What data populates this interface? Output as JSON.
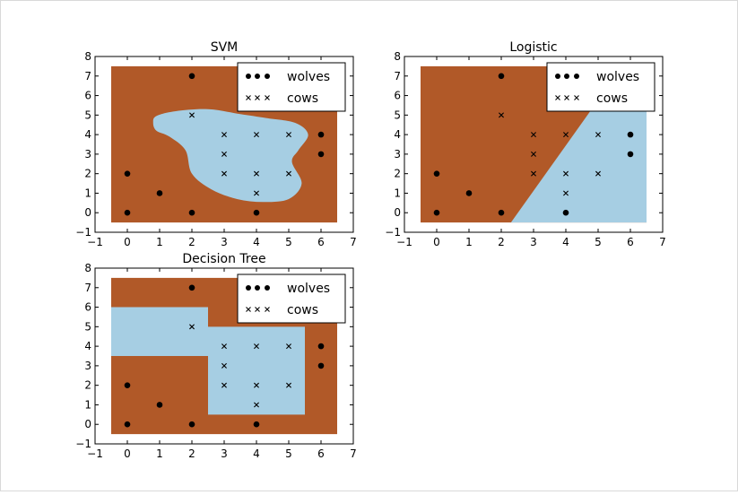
{
  "colors": {
    "background_region": "#b15928",
    "decision_region": "#a6cee3",
    "point": "#000000"
  },
  "chart_data": [
    {
      "type": "scatter",
      "title": "SVM",
      "xlim": [
        -1,
        7
      ],
      "ylim": [
        -1,
        8
      ],
      "xticks": [
        "−1",
        "0",
        "1",
        "2",
        "3",
        "4",
        "5",
        "6",
        "7"
      ],
      "yticks": [
        "−1",
        "0",
        "1",
        "2",
        "3",
        "4",
        "5",
        "6",
        "7",
        "8"
      ],
      "grid": false,
      "legend": {
        "placement": "top-right",
        "entries": [
          "wolves",
          "cows"
        ]
      },
      "region_extent": {
        "x": [
          -0.5,
          6.5
        ],
        "y": [
          -0.5,
          7.5
        ]
      },
      "decision_region": {
        "shape": "blob",
        "outline": [
          [
            0.8,
            4.6
          ],
          [
            0.9,
            4.95
          ],
          [
            1.5,
            5.2
          ],
          [
            2.5,
            5.3
          ],
          [
            3.5,
            5.05
          ],
          [
            4.3,
            4.85
          ],
          [
            5.2,
            4.6
          ],
          [
            5.6,
            4.0
          ],
          [
            5.3,
            3.2
          ],
          [
            5.1,
            2.6
          ],
          [
            5.4,
            1.5
          ],
          [
            5.0,
            0.7
          ],
          [
            4.2,
            0.55
          ],
          [
            3.4,
            0.7
          ],
          [
            2.6,
            1.2
          ],
          [
            2.0,
            2.0
          ],
          [
            1.8,
            3.2
          ],
          [
            1.3,
            3.9
          ],
          [
            0.9,
            4.2
          ]
        ]
      },
      "series": [
        {
          "name": "wolves",
          "marker": "dot",
          "x": [
            0,
            0,
            1,
            2,
            2,
            4,
            6,
            6
          ],
          "y": [
            0,
            2,
            1,
            0,
            7,
            0,
            3,
            4
          ]
        },
        {
          "name": "cows",
          "marker": "x",
          "x": [
            2,
            3,
            3,
            3,
            4,
            4,
            4,
            5,
            5
          ],
          "y": [
            5,
            2,
            3,
            4,
            1,
            2,
            4,
            2,
            4
          ]
        }
      ]
    },
    {
      "type": "scatter",
      "title": "Logistic",
      "xlim": [
        -1,
        7
      ],
      "ylim": [
        -1,
        8
      ],
      "xticks": [
        "−1",
        "0",
        "1",
        "2",
        "3",
        "4",
        "5",
        "6",
        "7"
      ],
      "yticks": [
        "−1",
        "0",
        "1",
        "2",
        "3",
        "4",
        "5",
        "6",
        "7",
        "8"
      ],
      "grid": false,
      "legend": {
        "placement": "top-right",
        "entries": [
          "wolves",
          "cows"
        ]
      },
      "region_extent": {
        "x": [
          -0.5,
          6.5
        ],
        "y": [
          -0.5,
          7.5
        ]
      },
      "decision_region": {
        "shape": "polygon",
        "outline": [
          [
            2.3,
            -0.5
          ],
          [
            6.5,
            -0.5
          ],
          [
            6.5,
            5.3
          ],
          [
            4.8,
            5.3
          ]
        ]
      },
      "series": [
        {
          "name": "wolves",
          "marker": "dot",
          "x": [
            0,
            0,
            1,
            2,
            2,
            4,
            6,
            6
          ],
          "y": [
            0,
            2,
            1,
            0,
            7,
            0,
            3,
            4
          ]
        },
        {
          "name": "cows",
          "marker": "x",
          "x": [
            2,
            3,
            3,
            3,
            4,
            4,
            4,
            5,
            5
          ],
          "y": [
            5,
            2,
            3,
            4,
            1,
            2,
            4,
            2,
            4
          ]
        }
      ]
    },
    {
      "type": "scatter",
      "title": "Decision Tree",
      "xlim": [
        -1,
        7
      ],
      "ylim": [
        -1,
        8
      ],
      "xticks": [
        "−1",
        "0",
        "1",
        "2",
        "3",
        "4",
        "5",
        "6",
        "7"
      ],
      "yticks": [
        "−1",
        "0",
        "1",
        "2",
        "3",
        "4",
        "5",
        "6",
        "7",
        "8"
      ],
      "grid": false,
      "legend": {
        "placement": "top-right",
        "entries": [
          "wolves",
          "cows"
        ]
      },
      "region_extent": {
        "x": [
          -0.5,
          6.5
        ],
        "y": [
          -0.5,
          7.5
        ]
      },
      "decision_region": {
        "shape": "polygon",
        "outline": [
          [
            -0.5,
            3.5
          ],
          [
            -0.5,
            6
          ],
          [
            2.5,
            6
          ],
          [
            2.5,
            5
          ],
          [
            5.5,
            5
          ],
          [
            5.5,
            0.5
          ],
          [
            2.5,
            0.5
          ],
          [
            2.5,
            3.5
          ]
        ]
      },
      "series": [
        {
          "name": "wolves",
          "marker": "dot",
          "x": [
            0,
            0,
            1,
            2,
            2,
            4,
            6,
            6
          ],
          "y": [
            0,
            2,
            1,
            0,
            7,
            0,
            3,
            4
          ]
        },
        {
          "name": "cows",
          "marker": "x",
          "x": [
            2,
            3,
            3,
            3,
            4,
            4,
            4,
            5,
            5
          ],
          "y": [
            5,
            2,
            3,
            4,
            1,
            2,
            4,
            2,
            4
          ]
        }
      ]
    }
  ]
}
